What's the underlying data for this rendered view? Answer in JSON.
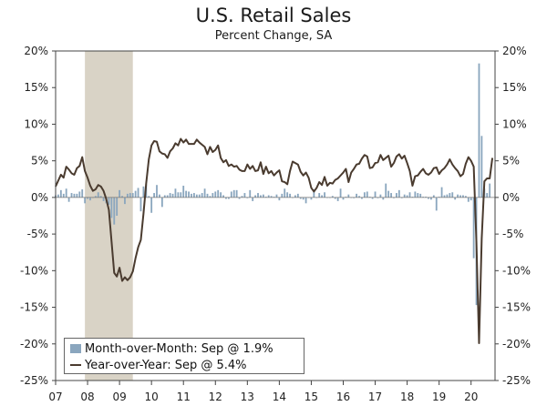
{
  "header": {
    "title": "U.S. Retail Sales",
    "subtitle": "Percent Change, SA"
  },
  "colors": {
    "bars": "#8aa6be",
    "line": "#4a3b2f",
    "recession": "#d9d3c6",
    "axis": "#444444"
  },
  "chart_data": {
    "type": "bar+line",
    "title": "U.S. Retail Sales",
    "subtitle": "Percent Change, SA",
    "ylim": [
      -25,
      20
    ],
    "yticks_left": [
      "20%",
      "15%",
      "10%",
      "5%",
      "0%",
      "-5%",
      "-10%",
      "-15%",
      "-20%",
      "-25%"
    ],
    "yticks_right": [
      "20%",
      "15%",
      "10%",
      "5%",
      "0%",
      "-5%",
      "-10%",
      "-15%",
      "-20%",
      "-25%"
    ],
    "ytick_values": [
      20,
      15,
      10,
      5,
      0,
      -5,
      -10,
      -15,
      -20,
      -25
    ],
    "x_start": 2007.0,
    "x_end": 2020.75,
    "x_tick_labels": [
      "07",
      "08",
      "09",
      "10",
      "11",
      "12",
      "13",
      "14",
      "15",
      "16",
      "17",
      "18",
      "19",
      "20"
    ],
    "x_tick_years": [
      2007,
      2008,
      2009,
      2010,
      2011,
      2012,
      2013,
      2014,
      2015,
      2016,
      2017,
      2018,
      2019,
      2020
    ],
    "recession": {
      "start": 2007.917,
      "end": 2009.417
    },
    "legend": {
      "bars_label": "Month-over-Month: Sep @ 1.9%",
      "line_label": "Year-over-Year: Sep @ 5.4%"
    },
    "series": [
      {
        "name": "Month-over-Month",
        "kind": "bar",
        "start": 2007.0,
        "step": 0.0833333,
        "values": [
          0.3,
          0.4,
          1.0,
          0.5,
          1.2,
          -0.6,
          0.6,
          0.5,
          0.5,
          0.8,
          1.1,
          -0.8,
          -0.2,
          -0.4,
          0.0,
          0.2,
          0.7,
          0.2,
          -0.5,
          -0.8,
          -1.0,
          -2.8,
          -3.7,
          -2.5,
          1.0,
          0.2,
          -0.9,
          0.5,
          0.6,
          0.6,
          0.9,
          1.3,
          -1.9,
          1.5,
          1.8,
          0.2,
          -2.1,
          0.6,
          1.7,
          0.4,
          -1.3,
          0.3,
          0.3,
          0.6,
          0.5,
          1.2,
          0.7,
          0.7,
          1.6,
          0.9,
          0.8,
          0.5,
          0.6,
          0.4,
          0.4,
          0.6,
          1.2,
          0.5,
          0.2,
          0.6,
          0.8,
          1.0,
          0.7,
          0.3,
          -0.2,
          -0.2,
          0.8,
          1.0,
          1.0,
          -0.2,
          0.2,
          0.6,
          -0.1,
          1.0,
          -0.5,
          0.3,
          0.6,
          0.3,
          0.4,
          0.1,
          0.3,
          0.2,
          0.1,
          0.4,
          -0.4,
          0.5,
          1.2,
          0.7,
          0.5,
          0.0,
          0.3,
          0.5,
          -0.2,
          -0.3,
          -0.8,
          0.0,
          -0.3,
          1.1,
          0.0,
          0.6,
          0.3,
          0.7,
          0.0,
          0.0,
          0.2,
          -0.2,
          -0.5,
          1.2,
          -0.3,
          0.1,
          0.4,
          0.0,
          -0.1,
          0.5,
          0.2,
          -0.2,
          0.7,
          0.8,
          0.1,
          -0.2,
          0.8,
          -0.1,
          0.4,
          -0.3,
          1.9,
          0.9,
          0.6,
          -0.1,
          0.6,
          1.0,
          -0.1,
          0.4,
          0.3,
          0.7,
          0.1,
          0.8,
          0.6,
          0.5,
          0.1,
          0.1,
          -0.2,
          -0.3,
          0.3,
          -1.8,
          0.1,
          1.4,
          0.3,
          0.4,
          0.6,
          0.7,
          -0.3,
          0.4,
          0.3,
          0.3,
          0.2,
          -0.6,
          -0.4,
          -8.3,
          -14.7,
          18.3,
          8.4,
          1.2,
          0.6,
          1.9
        ]
      },
      {
        "name": "Year-over-Year",
        "kind": "line",
        "start": 2007.0,
        "step": 0.0833333,
        "values": [
          1.5,
          2.3,
          3.1,
          2.7,
          4.2,
          3.8,
          3.3,
          3.1,
          4.0,
          4.3,
          5.5,
          3.6,
          2.7,
          1.6,
          0.9,
          1.1,
          1.7,
          1.5,
          0.9,
          -0.2,
          -1.7,
          -6.0,
          -10.3,
          -10.8,
          -9.6,
          -11.4,
          -10.9,
          -11.3,
          -10.9,
          -10.1,
          -8.3,
          -6.8,
          -5.8,
          -2.2,
          1.9,
          5.2,
          7.1,
          7.7,
          7.6,
          6.3,
          6.0,
          5.9,
          5.4,
          6.3,
          6.7,
          7.4,
          7.1,
          8.0,
          7.5,
          7.9,
          7.3,
          7.3,
          7.3,
          7.9,
          7.5,
          7.2,
          6.9,
          5.9,
          6.9,
          6.2,
          6.5,
          7.1,
          5.4,
          4.8,
          5.1,
          4.3,
          4.5,
          4.2,
          4.3,
          3.8,
          3.6,
          3.6,
          4.5,
          3.9,
          4.3,
          3.6,
          3.7,
          4.8,
          3.2,
          4.2,
          3.3,
          3.6,
          3.0,
          3.4,
          3.7,
          2.2,
          2.1,
          1.8,
          3.6,
          4.9,
          4.7,
          4.5,
          3.5,
          3.0,
          3.4,
          2.7,
          1.3,
          0.8,
          1.3,
          2.1,
          1.7,
          2.8,
          1.6,
          2.0,
          1.9,
          2.4,
          2.6,
          3.0,
          3.4,
          3.9,
          2.1,
          3.4,
          3.9,
          4.5,
          4.6,
          5.3,
          5.8,
          5.6,
          4.0,
          4.1,
          4.7,
          4.8,
          5.8,
          5.1,
          5.4,
          5.7,
          4.2,
          4.7,
          5.6,
          5.9,
          5.3,
          5.7,
          4.7,
          3.6,
          1.6,
          2.9,
          3.0,
          3.5,
          3.9,
          3.3,
          3.1,
          3.4,
          4.0,
          4.1,
          3.2,
          3.7,
          4.0,
          4.5,
          5.2,
          4.5,
          4.0,
          3.6,
          2.9,
          3.2,
          4.6,
          5.5,
          5.0,
          4.2,
          -6.0,
          -19.9,
          -5.6,
          2.2,
          2.6,
          2.6,
          5.4
        ]
      }
    ]
  }
}
